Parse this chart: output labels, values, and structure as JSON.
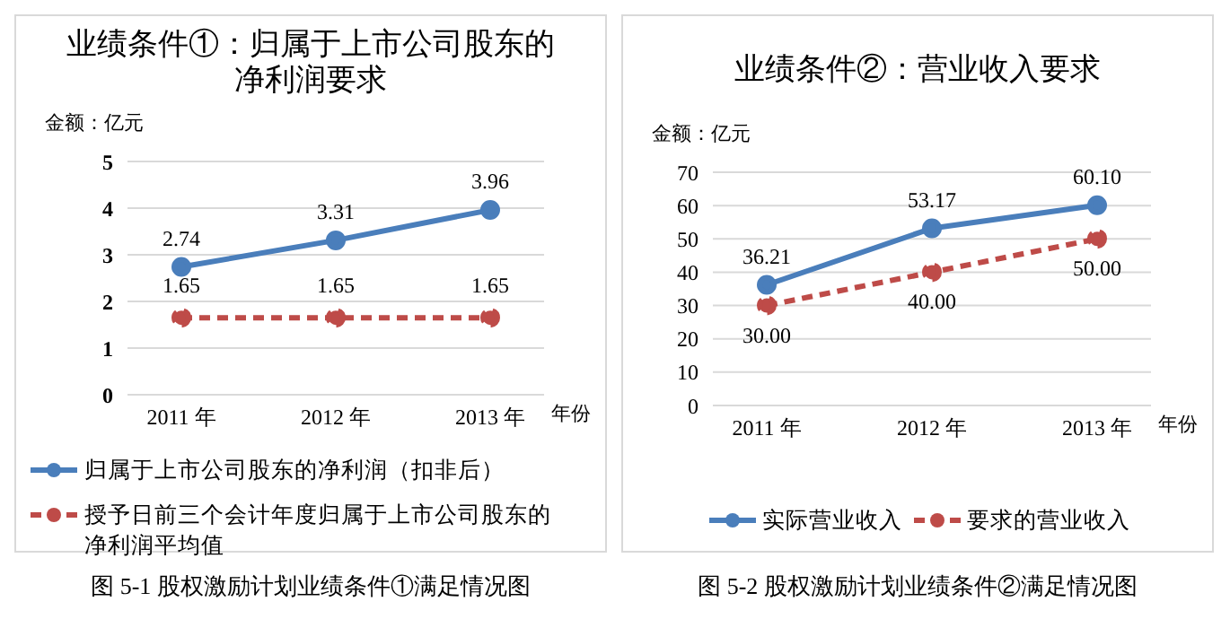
{
  "chart_data": [
    {
      "type": "line",
      "title": "业绩条件①：归属于上市公司股东的净利润要求",
      "ylabel": "金额：亿元",
      "xlabel": "年份",
      "categories": [
        "2011 年",
        "2012 年",
        "2013 年"
      ],
      "series": [
        {
          "name": "归属于上市公司股东的净利润（扣非后）",
          "color": "#4a7ebb",
          "values": [
            2.74,
            3.31,
            3.96
          ],
          "line_style": "solid"
        },
        {
          "name": "授予日前三个会计年度归属于上市公司股东的净利润平均值",
          "color": "#be4b48",
          "values": [
            1.65,
            1.65,
            1.65
          ],
          "line_style": "dashed"
        }
      ],
      "ylim": [
        0,
        5
      ],
      "yticks": [
        0,
        1,
        2,
        3,
        4,
        5
      ],
      "grid": "y",
      "legend": "bottom",
      "marker": "circle",
      "data_labels": true,
      "annotations": [
        "图 5-1 股权激励计划业绩条件①满足情况图"
      ]
    },
    {
      "type": "line",
      "title": "业绩条件②：营业收入要求",
      "ylabel": "金额：亿元",
      "xlabel": "年份",
      "categories": [
        "2011 年",
        "2012 年",
        "2013 年"
      ],
      "series": [
        {
          "name": "实际营业收入",
          "color": "#4a7ebb",
          "values": [
            36.21,
            53.17,
            60.1
          ],
          "value_labels": [
            "36.21",
            "53.17",
            "60.10"
          ],
          "line_style": "solid"
        },
        {
          "name": "要求的营业收入",
          "color": "#be4b48",
          "values": [
            30,
            40,
            50
          ],
          "value_labels": [
            "30.00",
            "40.00",
            "50.00"
          ],
          "line_style": "dashed"
        }
      ],
      "ylim": [
        0,
        70
      ],
      "yticks": [
        0,
        10,
        20,
        30,
        40,
        50,
        60,
        70
      ],
      "grid": "y",
      "legend": "bottom",
      "marker": "circle",
      "annotations": [
        "图 5-2 股权激励计划业绩条件②满足情况图"
      ]
    }
  ]
}
